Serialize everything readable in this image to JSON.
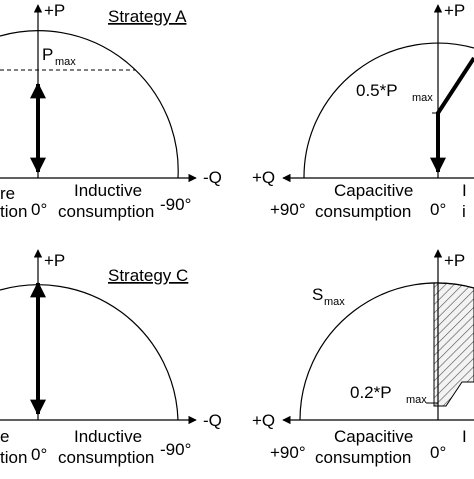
{
  "panel_a": {
    "title": "Strategy A",
    "axis_p": "+P",
    "axis_q": "-Q",
    "pmax_main": "P",
    "pmax_sub": "max",
    "origin": "0°",
    "end_angle": "-90°",
    "region_left_line1": "re",
    "region_left_line2": "tion",
    "region_right_line1": "Inductive",
    "region_right_line2": "consumption"
  },
  "panel_b": {
    "axis_p": "+P",
    "axis_q": "+Q",
    "half_pmax_main": "0.5*P",
    "half_pmax_sub": "max",
    "start_angle": "+90°",
    "origin": "0°",
    "region_left_line1": "Capacitive",
    "region_left_line2": "consumption",
    "region_right_line1": "I",
    "region_right_line2": "i"
  },
  "panel_c": {
    "title": "Strategy C",
    "axis_p": "+P",
    "axis_q": "-Q",
    "origin": "0°",
    "end_angle": "-90°",
    "region_left_line1": "e",
    "region_left_line2": "tion",
    "region_right_line1": "Inductive",
    "region_right_line2": "consumption"
  },
  "panel_d": {
    "axis_p": "+P",
    "axis_q": "+Q",
    "smax_main": "S",
    "smax_sub": "max",
    "point2_main": "0.2*P",
    "point2_sub": "max",
    "start_angle": "+90°",
    "origin": "0°",
    "region_left_line1": "Capacitive",
    "region_left_line2": "consumption",
    "region_right_line1": "I",
    "region_right_line2": ""
  }
}
